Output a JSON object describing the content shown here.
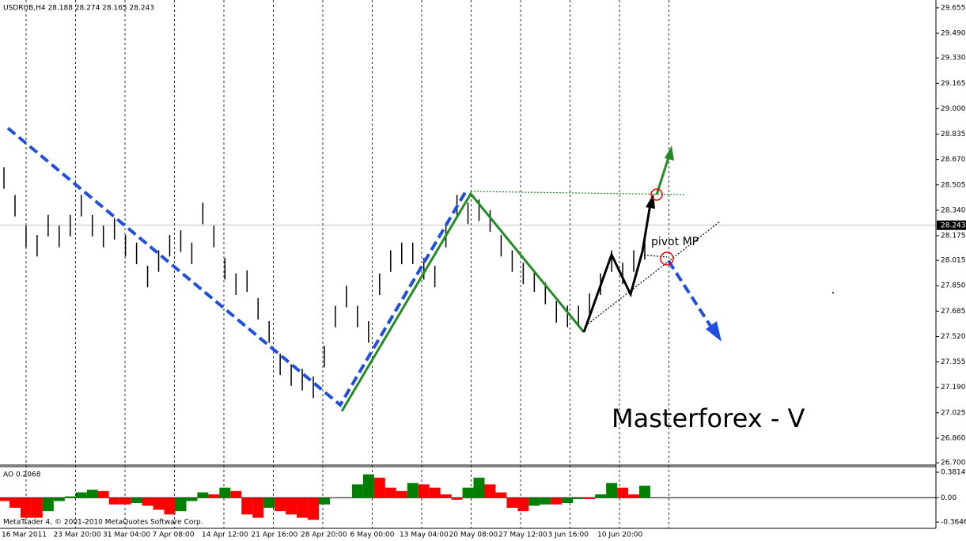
{
  "chart_data": {
    "type": "ohlc",
    "title": "USDRUB,H4  28.188 28.274 28.165 28.243",
    "copyright": "MetaTrader 4, © 2001-2010 MetaQuotes Software Corp.",
    "annotations": [
      "pivot MP",
      "Masterforex - V"
    ],
    "annotation_color": "#1a8a1a",
    "current_price": 28.243,
    "color": "#000000",
    "grid": true,
    "categories": [
      "16 Mar 2011",
      "23 Mar 20:00",
      "31 Mar 04:00",
      "7 Apr 08:00",
      "14 Apr 12:00",
      "21 Apr 16:00",
      "28 Apr 20:00",
      "6 May 00:00",
      "13 May 04:00",
      "20 May 08:00",
      "27 May 12:00",
      "3 Jun 16:00",
      "10 Jun 20:00"
    ],
    "high": [
      28.62,
      28.44,
      28.24,
      28.18,
      28.31,
      28.24,
      28.31,
      28.44,
      28.31,
      28.24,
      28.29,
      28.18,
      28.13,
      27.98,
      28.08,
      28.18,
      28.21,
      28.13,
      28.39,
      28.24,
      28.03,
      27.93,
      27.95,
      27.77,
      27.62,
      27.41,
      27.34,
      27.31,
      27.26,
      27.46,
      27.72,
      27.85,
      27.72,
      27.62,
      27.93,
      28.08,
      28.13,
      28.13,
      28.03,
      27.98,
      28.24,
      28.44,
      28.39,
      28.41,
      28.34,
      28.18,
      28.08,
      28.0,
      27.95,
      27.87,
      27.75,
      27.72,
      27.72,
      27.8,
      27.93,
      28.08,
      28.0,
      28.08,
      28.16
    ],
    "low": [
      28.48,
      28.3,
      28.1,
      28.04,
      28.17,
      28.1,
      28.17,
      28.3,
      28.17,
      28.1,
      28.15,
      28.04,
      27.99,
      27.84,
      27.94,
      28.04,
      28.07,
      27.99,
      28.25,
      28.1,
      27.89,
      27.79,
      27.81,
      27.63,
      27.48,
      27.27,
      27.2,
      27.17,
      27.12,
      27.32,
      27.58,
      27.71,
      27.58,
      27.48,
      27.79,
      27.94,
      27.99,
      27.99,
      27.89,
      27.84,
      28.1,
      28.3,
      28.25,
      28.27,
      28.2,
      28.04,
      27.94,
      27.86,
      27.81,
      27.73,
      27.61,
      27.58,
      27.58,
      27.66,
      27.79,
      27.94,
      27.86,
      27.94,
      28.02
    ],
    "ylim": [
      26.685,
      29.706
    ],
    "yticks": [
      29.655,
      {
        "value": 29.49,
        "label": "29.490"
      },
      {
        "value": 29.33,
        "label": "29.330"
      },
      29.165,
      {
        "value": 29.0,
        "label": "29.000"
      },
      28.835,
      {
        "value": 28.67,
        "label": "28.670"
      },
      28.505,
      {
        "value": 28.34,
        "label": "28.340"
      },
      28.175,
      28.015,
      {
        "value": 27.85,
        "label": "27.850"
      },
      27.685,
      {
        "value": 27.52,
        "label": "27.520"
      },
      27.355,
      {
        "value": 27.19,
        "label": "27.190"
      },
      27.025,
      {
        "value": 26.86,
        "label": "26.860"
      },
      {
        "value": 26.7,
        "label": "26.700"
      }
    ],
    "indicator": {
      "title": "AO 0.2068",
      "up_color": "#008000",
      "down_color": "#ff0000",
      "values": [
        -0.05,
        -0.15,
        -0.3,
        -0.3,
        -0.2,
        -0.05,
        0.02,
        0.08,
        0.12,
        0.1,
        -0.1,
        -0.1,
        -0.08,
        -0.12,
        -0.18,
        -0.25,
        -0.2,
        -0.05,
        0.08,
        0.05,
        0.15,
        0.1,
        -0.25,
        -0.3,
        -0.15,
        -0.2,
        -0.25,
        -0.3,
        -0.33,
        -0.1,
        0.0,
        0.0,
        0.2,
        0.35,
        0.3,
        0.15,
        0.1,
        0.22,
        0.2,
        0.15,
        0.05,
        -0.03,
        0.15,
        0.3,
        0.2,
        0.08,
        -0.15,
        -0.2,
        -0.12,
        -0.1,
        -0.1,
        -0.08,
        -0.02,
        -0.02,
        0.05,
        0.22,
        0.15,
        0.05,
        0.18
      ],
      "ylim": [
        -0.458,
        0.465
      ],
      "yticks": [
        0.3814,
        {
          "value": 0,
          "label": "0.00"
        },
        -0.3646
      ]
    }
  }
}
